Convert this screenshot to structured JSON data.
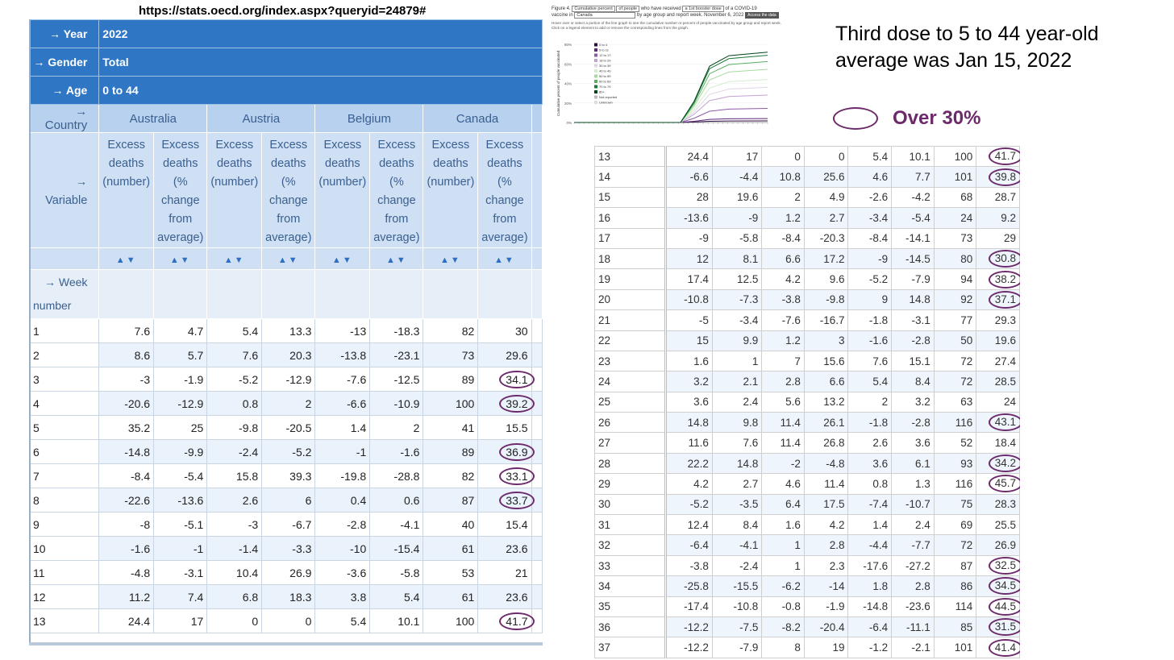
{
  "url": "https://stats.oecd.org/index.aspx?queryid=24879#",
  "dims": [
    {
      "label": "Year",
      "value": "2022"
    },
    {
      "label": "Gender",
      "value": "Total"
    },
    {
      "label": "Age",
      "value": "0 to 44"
    }
  ],
  "country_label": "Country",
  "countries": [
    "Australia",
    "Austria",
    "Belgium",
    "Canada"
  ],
  "variable_label": "Variable",
  "var_number": [
    "Excess",
    "deaths",
    "(number)"
  ],
  "var_pct": [
    "Excess",
    "deaths",
    "(%",
    "change",
    "from",
    "average)"
  ],
  "week_label": [
    "Week",
    "number"
  ],
  "rows": [
    [
      "1",
      "7.6",
      "4.7",
      "5.4",
      "13.3",
      "-13",
      "-18.3",
      "82",
      "30"
    ],
    [
      "2",
      "8.6",
      "5.7",
      "7.6",
      "20.3",
      "-13.8",
      "-23.1",
      "73",
      "29.6"
    ],
    [
      "3",
      "-3",
      "-1.9",
      "-5.2",
      "-12.9",
      "-7.6",
      "-12.5",
      "89",
      "34.1"
    ],
    [
      "4",
      "-20.6",
      "-12.9",
      "0.8",
      "2",
      "-6.6",
      "-10.9",
      "100",
      "39.2"
    ],
    [
      "5",
      "35.2",
      "25",
      "-9.8",
      "-20.5",
      "1.4",
      "2",
      "41",
      "15.5"
    ],
    [
      "6",
      "-14.8",
      "-9.9",
      "-2.4",
      "-5.2",
      "-1",
      "-1.6",
      "89",
      "36.9"
    ],
    [
      "7",
      "-8.4",
      "-5.4",
      "15.8",
      "39.3",
      "-19.8",
      "-28.8",
      "82",
      "33.1"
    ],
    [
      "8",
      "-22.6",
      "-13.6",
      "2.6",
      "6",
      "0.4",
      "0.6",
      "87",
      "33.7"
    ],
    [
      "9",
      "-8",
      "-5.1",
      "-3",
      "-6.7",
      "-2.8",
      "-4.1",
      "40",
      "15.4"
    ],
    [
      "10",
      "-1.6",
      "-1",
      "-1.4",
      "-3.3",
      "-10",
      "-15.4",
      "61",
      "23.6"
    ],
    [
      "11",
      "-4.8",
      "-3.1",
      "10.4",
      "26.9",
      "-3.6",
      "-5.8",
      "53",
      "21"
    ],
    [
      "12",
      "11.2",
      "7.4",
      "6.8",
      "18.3",
      "3.8",
      "5.4",
      "61",
      "23.6"
    ],
    [
      "13",
      "24.4",
      "17",
      "0",
      "0",
      "5.4",
      "10.1",
      "100",
      "41.7"
    ],
    [
      "14",
      "-6.6",
      "-4.4",
      "10.8",
      "25.6",
      "4.6",
      "7.7",
      "101",
      "39.8"
    ],
    [
      "15",
      "28",
      "19.6",
      "2",
      "4.9",
      "-2.6",
      "-4.2",
      "68",
      "28.7"
    ],
    [
      "16",
      "-13.6",
      "-9",
      "1.2",
      "2.7",
      "-3.4",
      "-5.4",
      "24",
      "9.2"
    ],
    [
      "17",
      "-9",
      "-5.8",
      "-8.4",
      "-20.3",
      "-8.4",
      "-14.1",
      "73",
      "29"
    ],
    [
      "18",
      "12",
      "8.1",
      "6.6",
      "17.2",
      "-9",
      "-14.5",
      "80",
      "30.8"
    ],
    [
      "19",
      "17.4",
      "12.5",
      "4.2",
      "9.6",
      "-5.2",
      "-7.9",
      "94",
      "38.2"
    ],
    [
      "20",
      "-10.8",
      "-7.3",
      "-3.8",
      "-9.8",
      "9",
      "14.8",
      "92",
      "37.1"
    ],
    [
      "21",
      "-5",
      "-3.4",
      "-7.6",
      "-16.7",
      "-1.8",
      "-3.1",
      "77",
      "29.3"
    ],
    [
      "22",
      "15",
      "9.9",
      "1.2",
      "3",
      "-1.6",
      "-2.8",
      "50",
      "19.6"
    ],
    [
      "23",
      "1.6",
      "1",
      "7",
      "15.6",
      "7.6",
      "15.1",
      "72",
      "27.4"
    ],
    [
      "24",
      "3.2",
      "2.1",
      "2.8",
      "6.6",
      "5.4",
      "8.4",
      "72",
      "28.5"
    ],
    [
      "25",
      "3.6",
      "2.4",
      "5.6",
      "13.2",
      "2",
      "3.2",
      "63",
      "24"
    ],
    [
      "26",
      "14.8",
      "9.8",
      "11.4",
      "26.1",
      "-1.8",
      "-2.8",
      "116",
      "43.1"
    ],
    [
      "27",
      "11.6",
      "7.6",
      "11.4",
      "26.8",
      "2.6",
      "3.6",
      "52",
      "18.4"
    ],
    [
      "28",
      "22.2",
      "14.8",
      "-2",
      "-4.8",
      "3.6",
      "6.1",
      "93",
      "34.2"
    ],
    [
      "29",
      "4.2",
      "2.7",
      "4.6",
      "11.4",
      "0.8",
      "1.3",
      "116",
      "45.7"
    ],
    [
      "30",
      "-5.2",
      "-3.5",
      "6.4",
      "17.5",
      "-7.4",
      "-10.7",
      "75",
      "28.3"
    ],
    [
      "31",
      "12.4",
      "8.4",
      "1.6",
      "4.2",
      "1.4",
      "2.4",
      "69",
      "25.5"
    ],
    [
      "32",
      "-6.4",
      "-4.1",
      "1",
      "2.8",
      "-4.4",
      "-7.7",
      "72",
      "26.9"
    ],
    [
      "33",
      "-3.8",
      "-2.4",
      "1",
      "2.3",
      "-17.6",
      "-27.2",
      "87",
      "32.5"
    ],
    [
      "34",
      "-25.8",
      "-15.5",
      "-6.2",
      "-14",
      "1.8",
      "2.8",
      "86",
      "34.5"
    ],
    [
      "35",
      "-17.4",
      "-10.8",
      "-0.8",
      "-1.9",
      "-14.8",
      "-23.6",
      "114",
      "44.5"
    ],
    [
      "36",
      "-12.2",
      "-7.5",
      "-8.2",
      "-20.4",
      "-6.4",
      "-11.1",
      "85",
      "31.5"
    ],
    [
      "37",
      "-12.2",
      "-7.9",
      "8",
      "19",
      "-1.2",
      "-2.1",
      "101",
      "41.4"
    ]
  ],
  "circled_threshold": 30,
  "note": "Third dose to 5 to 44 year-old  average was Jan 15, 2022",
  "legend_label": "Over 30%",
  "figure": {
    "prefix": "Figure 4.",
    "metric": "Cumulative percent",
    "of": "of people",
    "who": "who have received",
    "dose": "a 1st booster dose",
    "suffix": "of a COVID-19",
    "vaccine_in": "vaccine in",
    "country": "Canada",
    "by": "by age group and report week. November 6, 2022",
    "access": "Access the data",
    "hint": "Hover over or select a portion of the line graph to see the cumulative number or percent of people vaccinated by age group and report week. Click on a legend element to add or remove the corresponding lines from the graph.",
    "ylabel": "Cumulative percent of people vaccinated",
    "yticks": [
      "80%",
      "60%",
      "40%",
      "20%",
      "0%"
    ],
    "legend": [
      {
        "name": "0 to 4",
        "color": "#2b0a3d"
      },
      {
        "name": "5 to 11",
        "color": "#5d2a7a"
      },
      {
        "name": "12 to 17",
        "color": "#8e5aa8"
      },
      {
        "name": "18 to 29",
        "color": "#c2a3d3"
      },
      {
        "name": "30 to 39",
        "color": "#e2d3ea"
      },
      {
        "name": "40 to 49",
        "color": "#d3edcf"
      },
      {
        "name": "50 to 59",
        "color": "#a6dba0"
      },
      {
        "name": "60 to 69",
        "color": "#5aae61"
      },
      {
        "name": "70 to 79",
        "color": "#1b7837"
      },
      {
        "name": "80+",
        "color": "#00441b"
      },
      {
        "name": "Not reported",
        "color": "#bbbbbb"
      },
      {
        "name": "Unknown",
        "color": "#dddddd"
      }
    ]
  }
}
